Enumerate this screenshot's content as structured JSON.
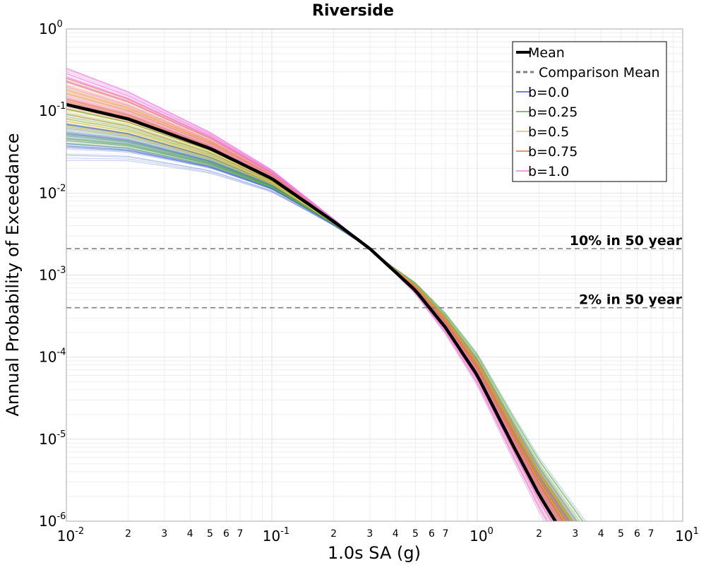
{
  "chart_data": {
    "type": "line",
    "title": "Riverside",
    "xlabel": "1.0s SA (g)",
    "ylabel": "Annual Probability of Exceedance",
    "xscale": "log",
    "yscale": "log",
    "xlim": [
      0.01,
      10
    ],
    "ylim": [
      1e-06,
      1
    ],
    "grid": true,
    "legend_position": "top-right",
    "x_ticks": [
      {
        "base": "10",
        "exp": "-2"
      },
      {
        "base": "10",
        "exp": "-1"
      },
      {
        "base": "10",
        "exp": "0"
      },
      {
        "base": "10",
        "exp": "1"
      }
    ],
    "x_minor_tick_labels": [
      "2",
      "3",
      "4",
      "5",
      "6",
      "7"
    ],
    "y_ticks": [
      {
        "base": "10",
        "exp": "0"
      },
      {
        "base": "10",
        "exp": "-1"
      },
      {
        "base": "10",
        "exp": "-2"
      },
      {
        "base": "10",
        "exp": "-3"
      },
      {
        "base": "10",
        "exp": "-4"
      },
      {
        "base": "10",
        "exp": "-5"
      },
      {
        "base": "10",
        "exp": "-6"
      }
    ],
    "series": [
      {
        "name": "Mean",
        "color": "#000000",
        "style": "solid-thick",
        "x": [
          0.01,
          0.02,
          0.05,
          0.1,
          0.2,
          0.3,
          0.5,
          0.7,
          1.0,
          1.5,
          2.0,
          2.4
        ],
        "y": [
          0.12,
          0.08,
          0.035,
          0.015,
          0.0045,
          0.0021,
          0.00065,
          0.00023,
          6e-05,
          8.2e-06,
          2.1e-06,
          1e-06
        ]
      },
      {
        "name": "Comparison Mean",
        "color": "#808080",
        "style": "dashed",
        "x": [],
        "y": []
      },
      {
        "name": "b=0.0",
        "color": "#3b5fd0",
        "style": "solid-thin",
        "band_y_at_xmin": [
          0.025,
          0.075
        ],
        "x_at_ymin": 2.9
      },
      {
        "name": "b=0.25",
        "color": "#5aaa46",
        "style": "solid-thin",
        "band_y_at_xmin": [
          0.04,
          0.12
        ],
        "x_at_ymin": 2.85
      },
      {
        "name": "b=0.5",
        "color": "#e6c440",
        "style": "solid-thin",
        "band_y_at_xmin": [
          0.06,
          0.18
        ],
        "x_at_ymin": 2.75
      },
      {
        "name": "b=0.75",
        "color": "#ea7030",
        "style": "solid-thin",
        "band_y_at_xmin": [
          0.09,
          0.26
        ],
        "x_at_ymin": 2.6
      },
      {
        "name": "b=1.0",
        "color": "#f07be0",
        "style": "solid-thin",
        "band_y_at_xmin": [
          0.12,
          0.35
        ],
        "x_at_ymin": 2.4
      }
    ],
    "reference_lines": [
      {
        "label": "10% in 50 year",
        "y": 0.0021,
        "color": "#808080",
        "style": "dashed"
      },
      {
        "label": "2% in 50 year",
        "y": 0.0004,
        "color": "#808080",
        "style": "dashed"
      }
    ]
  }
}
